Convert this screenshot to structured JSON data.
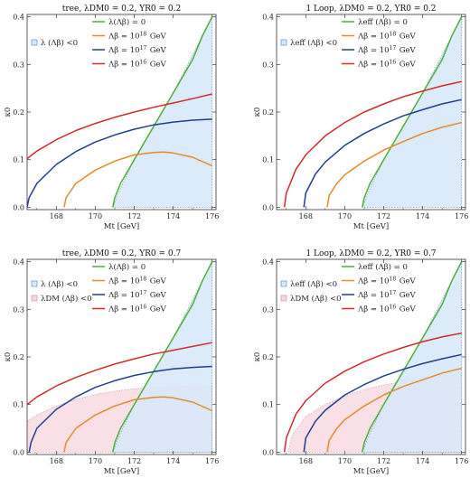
{
  "colors": {
    "green": "#4caf3a",
    "orange": "#e8892a",
    "blue": "#1f3f8f",
    "red": "#d42a2a",
    "region_blue": "#d8e9f8",
    "region_blue_edge": "#5b8fd6",
    "region_pink": "#f7d6df",
    "region_pink_edge": "#d98a9c"
  },
  "chart_data": [
    {
      "type": "line",
      "title": "tree, λDM0 = 0.2, YR0 = 0.2",
      "xlabel": "Mt [GeV]",
      "ylabel": "κ0",
      "xlim": [
        166.5,
        176.2
      ],
      "ylim": [
        -0.005,
        0.405
      ],
      "xticks": [
        168,
        170,
        172,
        174,
        176
      ],
      "yticks": [
        0.0,
        0.1,
        0.2,
        0.3,
        0.4
      ],
      "legend_position": "top-left",
      "shaded_regions": [
        {
          "name": "λ (Λβ) <0",
          "color": "blue",
          "x": [
            170.9,
            171.3,
            172.0,
            173.0,
            174.0,
            175.0,
            175.5,
            176.0,
            176.0
          ],
          "y_upper": [
            0.0,
            0.04,
            0.1,
            0.17,
            0.24,
            0.32,
            0.36,
            0.4,
            0.0
          ]
        }
      ],
      "series": [
        {
          "name": "λ(Λβ) = 0",
          "color": "green",
          "x": [
            170.9,
            171.0,
            171.3,
            172.0,
            173.0,
            174.0,
            175.0,
            175.5,
            176.0
          ],
          "y": [
            0.0,
            0.02,
            0.05,
            0.1,
            0.17,
            0.24,
            0.31,
            0.36,
            0.4
          ]
        },
        {
          "name": "Λβ = 10^18 GeV",
          "color": "orange",
          "x": [
            168.4,
            168.5,
            169.0,
            170.0,
            171.0,
            172.0,
            173.0,
            173.5,
            174.0,
            175.0,
            176.0
          ],
          "y": [
            0.0,
            0.02,
            0.05,
            0.078,
            0.097,
            0.11,
            0.115,
            0.116,
            0.114,
            0.105,
            0.087
          ]
        },
        {
          "name": "Λβ = 10^17 GeV",
          "color": "blue",
          "x": [
            166.5,
            166.6,
            167.0,
            168.0,
            169.0,
            170.0,
            171.0,
            172.0,
            173.0,
            174.0,
            175.0,
            176.0
          ],
          "y": [
            0.0,
            0.02,
            0.05,
            0.09,
            0.117,
            0.137,
            0.152,
            0.164,
            0.173,
            0.179,
            0.183,
            0.185
          ]
        },
        {
          "name": "Λβ = 10^16 GeV",
          "color": "red",
          "x": [
            166.5,
            167.0,
            168.0,
            169.0,
            170.0,
            171.0,
            172.0,
            173.0,
            174.0,
            175.0,
            176.0
          ],
          "y": [
            0.102,
            0.118,
            0.142,
            0.161,
            0.176,
            0.189,
            0.2,
            0.21,
            0.219,
            0.228,
            0.238
          ]
        }
      ]
    },
    {
      "type": "line",
      "title": "1 Loop, λDM0 = 0.2, YR0 = 0.2",
      "xlabel": "Mt [GeV]",
      "ylabel": "κ0",
      "xlim": [
        166.5,
        176.2
      ],
      "ylim": [
        -0.005,
        0.405
      ],
      "xticks": [
        168,
        170,
        172,
        174,
        176
      ],
      "yticks": [
        0.0,
        0.1,
        0.2,
        0.3,
        0.4
      ],
      "legend_position": "top-left",
      "shaded_regions": [
        {
          "name": "λeff (Λβ) <0",
          "color": "blue",
          "x": [
            170.9,
            171.3,
            172.0,
            173.0,
            174.0,
            175.0,
            175.5,
            176.0,
            176.0
          ],
          "y_upper": [
            0.0,
            0.04,
            0.1,
            0.17,
            0.24,
            0.32,
            0.36,
            0.4,
            0.0
          ]
        }
      ],
      "series": [
        {
          "name": "λeff (Λβ) = 0",
          "color": "green",
          "x": [
            170.9,
            171.0,
            171.3,
            172.0,
            173.0,
            174.0,
            175.0,
            175.5,
            176.0
          ],
          "y": [
            0.0,
            0.02,
            0.05,
            0.1,
            0.17,
            0.24,
            0.31,
            0.36,
            0.4
          ]
        },
        {
          "name": "Λβ = 10^18 GeV",
          "color": "orange",
          "x": [
            169.1,
            169.2,
            169.6,
            170.0,
            171.0,
            172.0,
            173.0,
            174.0,
            175.0,
            176.0
          ],
          "y": [
            0.0,
            0.025,
            0.05,
            0.068,
            0.097,
            0.12,
            0.138,
            0.155,
            0.168,
            0.178
          ]
        },
        {
          "name": "Λβ = 10^17 GeV",
          "color": "blue",
          "x": [
            167.9,
            168.0,
            168.5,
            169.0,
            170.0,
            171.0,
            172.0,
            173.0,
            174.0,
            175.0,
            176.0
          ],
          "y": [
            0.0,
            0.03,
            0.07,
            0.095,
            0.13,
            0.155,
            0.175,
            0.192,
            0.205,
            0.217,
            0.226
          ]
        },
        {
          "name": "Λβ = 10^16 GeV",
          "color": "red",
          "x": [
            166.9,
            167.0,
            167.5,
            168.0,
            169.0,
            170.0,
            171.0,
            172.0,
            173.0,
            174.0,
            175.0,
            176.0
          ],
          "y": [
            0.0,
            0.03,
            0.08,
            0.11,
            0.15,
            0.178,
            0.2,
            0.217,
            0.232,
            0.244,
            0.255,
            0.264
          ]
        }
      ]
    },
    {
      "type": "line",
      "title": "tree, λDM0 = 0.2, YR0 = 0.7",
      "xlabel": "Mt [GeV]",
      "ylabel": "κ0",
      "xlim": [
        166.5,
        176.2
      ],
      "ylim": [
        -0.005,
        0.405
      ],
      "xticks": [
        168,
        170,
        172,
        174,
        176
      ],
      "yticks": [
        0.0,
        0.1,
        0.2,
        0.3,
        0.4
      ],
      "legend_position": "top-left",
      "shaded_regions": [
        {
          "name": "λ (Λβ) <0",
          "color": "blue",
          "x": [
            170.9,
            171.3,
            172.0,
            173.0,
            174.0,
            175.0,
            175.5,
            176.0,
            176.0
          ],
          "y_upper": [
            0.0,
            0.04,
            0.1,
            0.17,
            0.24,
            0.32,
            0.36,
            0.4,
            0.0
          ]
        },
        {
          "name": "λDM (Λβ) <0",
          "color": "pink",
          "x": [
            166.5,
            167.0,
            168.0,
            169.0,
            170.0,
            171.0,
            172.0,
            173.0,
            174.0,
            175.0,
            176.0,
            176.0,
            166.5
          ],
          "y_upper": [
            0.065,
            0.078,
            0.097,
            0.111,
            0.121,
            0.128,
            0.133,
            0.136,
            0.138,
            0.139,
            0.14,
            0.0,
            0.0
          ]
        }
      ],
      "series": [
        {
          "name": "λ(Λβ) = 0",
          "color": "green",
          "x": [
            170.9,
            171.0,
            171.3,
            172.0,
            173.0,
            174.0,
            175.0,
            175.5,
            176.0
          ],
          "y": [
            0.0,
            0.02,
            0.05,
            0.1,
            0.17,
            0.24,
            0.31,
            0.36,
            0.4
          ]
        },
        {
          "name": "Λβ = 10^18 GeV",
          "color": "orange",
          "x": [
            168.4,
            168.5,
            169.0,
            170.0,
            171.0,
            172.0,
            173.0,
            173.5,
            174.0,
            175.0,
            176.0
          ],
          "y": [
            0.0,
            0.02,
            0.05,
            0.078,
            0.097,
            0.11,
            0.115,
            0.116,
            0.114,
            0.105,
            0.087
          ]
        },
        {
          "name": "Λβ = 10^17 GeV",
          "color": "blue",
          "x": [
            166.6,
            166.7,
            167.0,
            168.0,
            169.0,
            170.0,
            171.0,
            172.0,
            173.0,
            174.0,
            175.0,
            176.0
          ],
          "y": [
            0.0,
            0.02,
            0.05,
            0.09,
            0.116,
            0.136,
            0.15,
            0.161,
            0.169,
            0.175,
            0.178,
            0.18
          ]
        },
        {
          "name": "Λβ = 10^16 GeV",
          "color": "red",
          "x": [
            166.5,
            167.0,
            168.0,
            169.0,
            170.0,
            171.0,
            172.0,
            173.0,
            174.0,
            175.0,
            176.0
          ],
          "y": [
            0.1,
            0.116,
            0.139,
            0.157,
            0.172,
            0.185,
            0.196,
            0.206,
            0.214,
            0.222,
            0.23
          ]
        }
      ]
    },
    {
      "type": "line",
      "title": "1 Loop, λDM0 = 0.2, YR0 = 0.7",
      "xlabel": "Mt [GeV]",
      "ylabel": "κ0",
      "xlim": [
        166.5,
        176.2
      ],
      "ylim": [
        -0.005,
        0.405
      ],
      "xticks": [
        168,
        170,
        172,
        174,
        176
      ],
      "yticks": [
        0.0,
        0.1,
        0.2,
        0.3,
        0.4
      ],
      "legend_position": "top-left",
      "shaded_regions": [
        {
          "name": "λeff (Λβ) <0",
          "color": "blue",
          "x": [
            170.9,
            171.3,
            172.0,
            173.0,
            174.0,
            175.0,
            175.5,
            176.0,
            176.0
          ],
          "y_upper": [
            0.0,
            0.04,
            0.1,
            0.17,
            0.24,
            0.32,
            0.36,
            0.4,
            0.0
          ]
        },
        {
          "name": "λDM (Λβ) <0",
          "color": "pink",
          "x": [
            167.1,
            167.3,
            168.0,
            169.0,
            170.0,
            171.0,
            172.0,
            173.0,
            174.0,
            175.0,
            176.0,
            176.0,
            167.1
          ],
          "y_upper": [
            0.0,
            0.035,
            0.075,
            0.1,
            0.118,
            0.131,
            0.141,
            0.149,
            0.156,
            0.161,
            0.165,
            0.0,
            0.0
          ]
        }
      ],
      "series": [
        {
          "name": "λeff (Λβ) = 0",
          "color": "green",
          "x": [
            170.9,
            171.0,
            171.3,
            172.0,
            173.0,
            174.0,
            175.0,
            175.5,
            176.0
          ],
          "y": [
            0.0,
            0.02,
            0.05,
            0.1,
            0.17,
            0.24,
            0.31,
            0.36,
            0.4
          ]
        },
        {
          "name": "Λβ = 10^18 GeV",
          "color": "orange",
          "x": [
            169.1,
            169.2,
            169.6,
            170.0,
            171.0,
            172.0,
            173.0,
            174.0,
            175.0,
            176.0
          ],
          "y": [
            0.0,
            0.025,
            0.05,
            0.068,
            0.097,
            0.12,
            0.138,
            0.152,
            0.166,
            0.176
          ]
        },
        {
          "name": "Λβ = 10^17 GeV",
          "color": "blue",
          "x": [
            167.9,
            168.0,
            168.5,
            169.0,
            170.0,
            171.0,
            172.0,
            173.0,
            174.0,
            175.0,
            176.0
          ],
          "y": [
            0.0,
            0.03,
            0.065,
            0.088,
            0.12,
            0.142,
            0.16,
            0.174,
            0.186,
            0.196,
            0.205
          ]
        },
        {
          "name": "Λβ = 10^16 GeV",
          "color": "red",
          "x": [
            166.9,
            167.0,
            167.5,
            168.0,
            169.0,
            170.0,
            171.0,
            172.0,
            173.0,
            174.0,
            175.0,
            176.0
          ],
          "y": [
            0.0,
            0.03,
            0.08,
            0.108,
            0.145,
            0.17,
            0.19,
            0.206,
            0.22,
            0.232,
            0.242,
            0.25
          ]
        }
      ]
    }
  ]
}
